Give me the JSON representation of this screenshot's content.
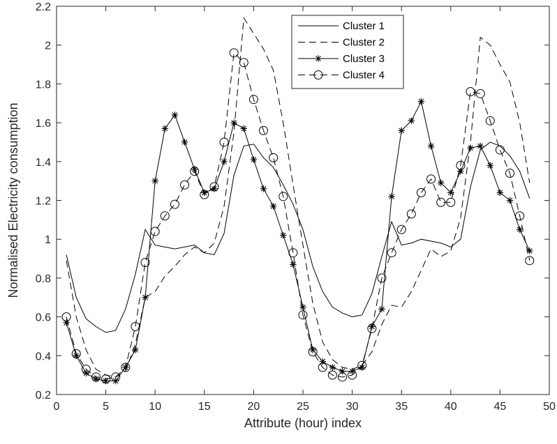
{
  "chart_data": {
    "type": "line",
    "title": "",
    "xlabel": "Attribute (hour) index",
    "ylabel": "Normalised Electricity consumption",
    "xlim": [
      0,
      50
    ],
    "ylim": [
      0.2,
      2.2
    ],
    "xticks": [
      "0",
      "5",
      "10",
      "15",
      "20",
      "25",
      "30",
      "35",
      "40",
      "45",
      "50"
    ],
    "yticks": [
      "0.2",
      "0.4",
      "0.6",
      "0.8",
      "1",
      "1.2",
      "1.4",
      "1.6",
      "1.8",
      "2",
      "2.2"
    ],
    "grid": false,
    "legend_position": "top-right",
    "x": [
      1,
      2,
      3,
      4,
      5,
      6,
      7,
      8,
      9,
      10,
      11,
      12,
      13,
      14,
      15,
      16,
      17,
      18,
      19,
      20,
      21,
      22,
      23,
      24,
      25,
      26,
      27,
      28,
      29,
      30,
      31,
      32,
      33,
      34,
      35,
      36,
      37,
      38,
      39,
      40,
      41,
      42,
      43,
      44,
      45,
      46,
      47,
      48
    ],
    "series": [
      {
        "name": "Cluster 1",
        "line": "solid",
        "marker": "none",
        "values": [
          0.92,
          0.7,
          0.59,
          0.55,
          0.52,
          0.53,
          0.64,
          0.82,
          1.05,
          0.97,
          0.96,
          0.95,
          0.96,
          0.97,
          0.93,
          0.92,
          1.03,
          1.33,
          1.48,
          1.49,
          1.42,
          1.37,
          1.28,
          1.18,
          1.05,
          0.86,
          0.73,
          0.65,
          0.62,
          0.6,
          0.61,
          0.72,
          0.91,
          1.09,
          0.97,
          0.98,
          1.0,
          0.99,
          0.98,
          0.96,
          1.0,
          1.27,
          1.46,
          1.5,
          1.48,
          1.43,
          1.35,
          1.21
        ]
      },
      {
        "name": "Cluster 2",
        "line": "dashed",
        "marker": "none",
        "values": [
          0.89,
          0.6,
          0.43,
          0.33,
          0.3,
          0.29,
          0.32,
          0.46,
          0.7,
          0.73,
          0.81,
          0.86,
          0.92,
          0.96,
          0.93,
          0.98,
          1.17,
          1.55,
          2.14,
          2.06,
          1.98,
          1.87,
          1.6,
          1.28,
          0.97,
          0.67,
          0.47,
          0.38,
          0.34,
          0.33,
          0.35,
          0.42,
          0.56,
          0.66,
          0.65,
          0.73,
          0.84,
          0.95,
          0.91,
          0.94,
          1.11,
          1.5,
          2.04,
          2.0,
          1.9,
          1.81,
          1.6,
          1.29
        ]
      },
      {
        "name": "Cluster 3",
        "line": "solid",
        "marker": "asterisk",
        "values": [
          0.57,
          0.4,
          0.31,
          0.28,
          0.27,
          0.27,
          0.34,
          0.43,
          0.7,
          1.3,
          1.57,
          1.64,
          1.5,
          1.36,
          1.24,
          1.26,
          1.4,
          1.6,
          1.57,
          1.41,
          1.26,
          1.17,
          1.02,
          0.87,
          0.65,
          0.43,
          0.37,
          0.34,
          0.32,
          0.32,
          0.34,
          0.55,
          0.64,
          1.22,
          1.56,
          1.61,
          1.71,
          1.48,
          1.29,
          1.24,
          1.35,
          1.47,
          1.48,
          1.38,
          1.24,
          1.2,
          1.05,
          0.94
        ]
      },
      {
        "name": "Cluster 4",
        "line": "dashed",
        "marker": "circle",
        "values": [
          0.6,
          0.41,
          0.33,
          0.29,
          0.28,
          0.29,
          0.34,
          0.55,
          0.88,
          1.04,
          1.12,
          1.18,
          1.28,
          1.35,
          1.23,
          1.27,
          1.5,
          1.96,
          1.91,
          1.72,
          1.56,
          1.42,
          1.22,
          0.93,
          0.61,
          0.42,
          0.34,
          0.3,
          0.29,
          0.3,
          0.35,
          0.54,
          0.8,
          0.93,
          1.05,
          1.13,
          1.24,
          1.31,
          1.19,
          1.19,
          1.38,
          1.76,
          1.75,
          1.61,
          1.46,
          1.34,
          1.12,
          0.89
        ]
      }
    ]
  }
}
